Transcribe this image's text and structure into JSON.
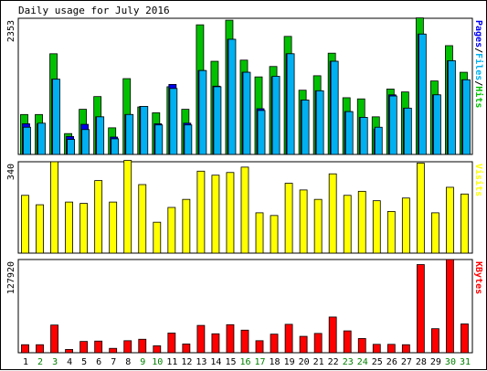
{
  "title": "Daily usage for July 2016",
  "colors": {
    "hits": "#00c000",
    "files": "#00b0f0",
    "pages": "#0000f0",
    "visits": "#ffff00",
    "kbytes": "#ff0000",
    "weekday_label": "#000000",
    "weekend_label": "#008000",
    "panel_border": "#000000"
  },
  "chart_data": [
    {
      "type": "bar",
      "panel": "hits-files-pages",
      "ymax_label": "2353",
      "ylim": [
        0,
        2353
      ],
      "legend": [
        {
          "text": "Pages",
          "color_key": "pages"
        },
        {
          "text": "/",
          "color_key": "weekday_label"
        },
        {
          "text": "Files",
          "color_key": "files"
        },
        {
          "text": "/",
          "color_key": "weekday_label"
        },
        {
          "text": "Hits",
          "color_key": "hits"
        }
      ],
      "categories": [
        "1",
        "2",
        "3",
        "4",
        "5",
        "6",
        "7",
        "8",
        "9",
        "10",
        "11",
        "12",
        "13",
        "14",
        "15",
        "16",
        "17",
        "18",
        "19",
        "20",
        "21",
        "22",
        "23",
        "24",
        "25",
        "26",
        "27",
        "28",
        "29",
        "30",
        "31"
      ],
      "weekend": [
        false,
        true,
        true,
        false,
        false,
        false,
        false,
        false,
        true,
        true,
        false,
        false,
        false,
        false,
        false,
        true,
        true,
        false,
        false,
        false,
        false,
        false,
        true,
        true,
        false,
        false,
        false,
        false,
        false,
        true,
        true
      ],
      "series": [
        {
          "name": "Hits",
          "color_key": "hits",
          "values": [
            690,
            690,
            1740,
            360,
            780,
            1000,
            460,
            1310,
            820,
            720,
            1170,
            780,
            2240,
            1610,
            2320,
            1630,
            1340,
            1520,
            2040,
            1110,
            1360,
            1750,
            980,
            960,
            650,
            1130,
            1080,
            2360,
            1270,
            1880,
            1420
          ]
        },
        {
          "name": "Files",
          "color_key": "files",
          "values": [
            470,
            540,
            1300,
            260,
            430,
            650,
            270,
            690,
            830,
            510,
            1140,
            510,
            1450,
            1170,
            1990,
            1420,
            760,
            1350,
            1740,
            940,
            1100,
            1610,
            740,
            640,
            470,
            1010,
            800,
            2080,
            1030,
            1620,
            1290
          ]
        },
        {
          "name": "Pages",
          "color_key": "pages",
          "values": [
            530,
            530,
            1300,
            310,
            520,
            650,
            300,
            690,
            830,
            530,
            1210,
            540,
            1450,
            1180,
            1990,
            1420,
            790,
            1340,
            1740,
            940,
            1100,
            1610,
            740,
            640,
            440,
            1030,
            800,
            2080,
            1030,
            1620,
            1290
          ]
        }
      ]
    },
    {
      "type": "bar",
      "panel": "visits",
      "ymax_label": "340",
      "ylim": [
        0,
        340
      ],
      "legend": [
        {
          "text": "Visits",
          "color_key": "visits"
        }
      ],
      "series": [
        {
          "name": "Visits",
          "color_key": "visits",
          "values": [
            215,
            180,
            340,
            190,
            185,
            270,
            190,
            345,
            255,
            115,
            170,
            200,
            305,
            290,
            300,
            320,
            150,
            140,
            260,
            235,
            200,
            295,
            215,
            230,
            195,
            155,
            205,
            335,
            150,
            245,
            220
          ]
        }
      ]
    },
    {
      "type": "bar",
      "panel": "kbytes",
      "ymax_label": "127920",
      "ylim": [
        0,
        127920
      ],
      "legend": [
        {
          "text": "KBytes",
          "color_key": "kbytes"
        }
      ],
      "series": [
        {
          "name": "KBytes",
          "color_key": "kbytes",
          "values": [
            11000,
            11000,
            38000,
            4500,
            15500,
            16000,
            6000,
            16500,
            18500,
            9500,
            27000,
            12000,
            37500,
            26000,
            38500,
            31000,
            16500,
            25500,
            39000,
            22500,
            26500,
            49000,
            30000,
            19500,
            11500,
            11500,
            11000,
            121000,
            33000,
            128000,
            39500
          ]
        }
      ]
    }
  ]
}
